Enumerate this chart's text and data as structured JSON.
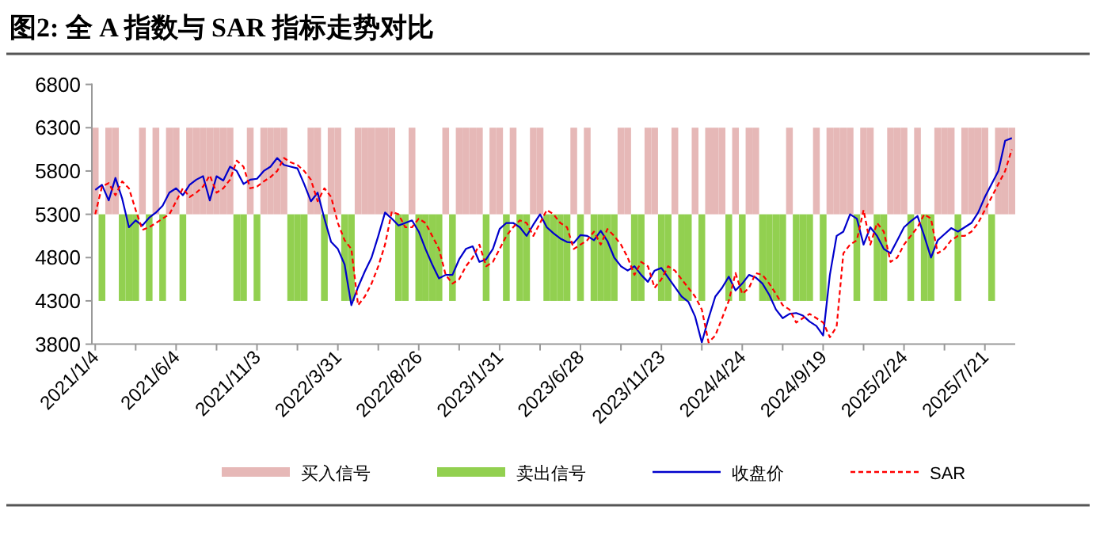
{
  "chart_data": {
    "type": "line",
    "title": "图2:  全 A 指数与 SAR 指标走势对比",
    "categories": [
      "2021/1/4",
      null,
      null,
      null,
      null,
      null,
      null,
      null,
      null,
      null,
      null,
      null,
      "2021/6/4",
      null,
      null,
      null,
      null,
      null,
      null,
      null,
      null,
      null,
      null,
      null,
      "2021/11/3",
      null,
      null,
      null,
      null,
      null,
      null,
      null,
      null,
      null,
      null,
      null,
      "2022/3/31",
      null,
      null,
      null,
      null,
      null,
      null,
      null,
      null,
      null,
      null,
      null,
      "2022/8/26",
      null,
      null,
      null,
      null,
      null,
      null,
      null,
      null,
      null,
      null,
      null,
      "2023/1/31",
      null,
      null,
      null,
      null,
      null,
      null,
      null,
      null,
      null,
      null,
      null,
      "2023/6/28",
      null,
      null,
      null,
      null,
      null,
      null,
      null,
      null,
      null,
      null,
      null,
      "2023/11/23",
      null,
      null,
      null,
      null,
      null,
      null,
      null,
      null,
      null,
      null,
      null,
      "2024/4/24",
      null,
      null,
      null,
      null,
      null,
      null,
      null,
      null,
      null,
      null,
      null,
      "2024/9/19",
      null,
      null,
      null,
      null,
      null,
      null,
      null,
      null,
      null,
      null,
      null,
      "2025/2/24",
      null,
      null,
      null,
      null,
      null,
      null,
      null,
      null,
      null,
      null,
      null,
      "2025/7/21",
      null,
      null,
      null,
      null
    ],
    "ylim": [
      3800,
      6800
    ],
    "yticks": [
      3800,
      4300,
      4800,
      5300,
      5800,
      6300,
      6800
    ],
    "legend": "bottom",
    "series": [
      {
        "name": "买入信号",
        "type": "bar",
        "color": "#e6b8b7",
        "values": [
          1000,
          null,
          1000,
          1000,
          null,
          null,
          null,
          1000,
          null,
          1000,
          null,
          1000,
          1000,
          null,
          1000,
          1000,
          1000,
          1000,
          1000,
          1000,
          1000,
          null,
          null,
          1000,
          null,
          1000,
          1000,
          1000,
          1000,
          null,
          null,
          null,
          1000,
          1000,
          null,
          1000,
          1000,
          null,
          null,
          1000,
          1000,
          1000,
          1000,
          1000,
          1000,
          null,
          null,
          1000,
          null,
          null,
          null,
          null,
          1000,
          null,
          1000,
          1000,
          1000,
          1000,
          null,
          1000,
          1000,
          null,
          1000,
          null,
          null,
          1000,
          1000,
          null,
          null,
          null,
          null,
          1000,
          null,
          1000,
          null,
          null,
          null,
          null,
          1000,
          1000,
          null,
          null,
          1000,
          1000,
          null,
          null,
          1000,
          null,
          null,
          1000,
          null,
          1000,
          1000,
          1000,
          null,
          1000,
          null,
          1000,
          1000,
          null,
          null,
          null,
          null,
          1000,
          null,
          null,
          null,
          1000,
          null,
          1000,
          1000,
          1000,
          1000,
          null,
          1000,
          1000,
          null,
          null,
          1000,
          1000,
          1000,
          null,
          1000,
          null,
          null,
          1000,
          1000,
          1000,
          null,
          1000,
          1000,
          1000,
          1000,
          null,
          1000,
          1000,
          1000
        ],
        "base": [
          5300,
          null,
          5300,
          5300,
          null,
          null,
          null,
          5300,
          null,
          5300,
          null,
          5300,
          5300,
          null,
          5300,
          5300,
          5300,
          5300,
          5300,
          5300,
          5300,
          null,
          null,
          5300,
          null,
          5300,
          5300,
          5300,
          5300,
          null,
          null,
          null,
          5300,
          5300,
          null,
          5300,
          5300,
          null,
          null,
          5300,
          5300,
          5300,
          5300,
          5300,
          5300,
          null,
          null,
          5300,
          null,
          null,
          null,
          null,
          5300,
          null,
          5300,
          5300,
          5300,
          5300,
          null,
          5300,
          5300,
          null,
          5300,
          null,
          null,
          5300,
          5300,
          null,
          null,
          null,
          null,
          5300,
          null,
          5300,
          null,
          null,
          null,
          null,
          5300,
          5300,
          null,
          null,
          5300,
          5300,
          null,
          null,
          5300,
          null,
          null,
          5300,
          null,
          5300,
          5300,
          5300,
          null,
          5300,
          null,
          5300,
          5300,
          null,
          null,
          null,
          null,
          5300,
          null,
          null,
          null,
          5300,
          null,
          5300,
          5300,
          5300,
          5300,
          null,
          5300,
          5300,
          null,
          null,
          5300,
          5300,
          5300,
          null,
          5300,
          null,
          null,
          5300,
          5300,
          5300,
          null,
          5300,
          5300,
          5300,
          5300,
          null,
          5300,
          5300,
          5300
        ]
      },
      {
        "name": "卖出信号",
        "type": "bar",
        "color": "#92d050",
        "values": [
          null,
          1000,
          null,
          null,
          1000,
          1000,
          1000,
          null,
          1000,
          null,
          1000,
          null,
          null,
          1000,
          null,
          null,
          null,
          null,
          null,
          null,
          null,
          1000,
          1000,
          null,
          1000,
          null,
          null,
          null,
          null,
          1000,
          1000,
          1000,
          null,
          null,
          1000,
          null,
          null,
          1000,
          1000,
          null,
          null,
          null,
          null,
          null,
          null,
          1000,
          1000,
          null,
          1000,
          1000,
          1000,
          1000,
          null,
          1000,
          null,
          null,
          null,
          null,
          1000,
          null,
          null,
          1000,
          null,
          1000,
          1000,
          null,
          null,
          1000,
          1000,
          1000,
          1000,
          null,
          1000,
          null,
          1000,
          1000,
          1000,
          1000,
          null,
          null,
          1000,
          1000,
          null,
          null,
          1000,
          1000,
          null,
          1000,
          1000,
          null,
          1000,
          null,
          null,
          null,
          1000,
          null,
          1000,
          null,
          null,
          1000,
          1000,
          1000,
          1000,
          null,
          1000,
          1000,
          1000,
          null,
          1000,
          null,
          null,
          null,
          null,
          1000,
          null,
          null,
          1000,
          1000,
          null,
          null,
          null,
          1000,
          null,
          1000,
          1000,
          null,
          null,
          null,
          1000,
          null,
          null,
          null,
          null,
          1000,
          null,
          null,
          null
        ],
        "base": [
          null,
          4300,
          null,
          null,
          4300,
          4300,
          4300,
          null,
          4300,
          null,
          4300,
          null,
          null,
          4300,
          null,
          null,
          null,
          null,
          null,
          null,
          null,
          4300,
          4300,
          null,
          4300,
          null,
          null,
          null,
          null,
          4300,
          4300,
          4300,
          null,
          null,
          4300,
          null,
          null,
          4300,
          4300,
          null,
          null,
          null,
          null,
          null,
          null,
          4300,
          4300,
          null,
          4300,
          4300,
          4300,
          4300,
          null,
          4300,
          null,
          null,
          null,
          null,
          4300,
          null,
          null,
          4300,
          null,
          4300,
          4300,
          null,
          null,
          4300,
          4300,
          4300,
          4300,
          null,
          4300,
          null,
          4300,
          4300,
          4300,
          4300,
          null,
          null,
          4300,
          4300,
          null,
          null,
          4300,
          4300,
          null,
          4300,
          4300,
          null,
          4300,
          null,
          null,
          null,
          4300,
          null,
          4300,
          null,
          null,
          4300,
          4300,
          4300,
          4300,
          null,
          4300,
          4300,
          4300,
          null,
          4300,
          null,
          null,
          null,
          null,
          4300,
          null,
          null,
          4300,
          4300,
          null,
          null,
          null,
          4300,
          null,
          4300,
          4300,
          null,
          null,
          null,
          4300,
          null,
          null,
          null,
          null,
          4300,
          null,
          null,
          null
        ]
      },
      {
        "name": "收盘价",
        "color": "#0000cc",
        "values": [
          5580,
          5640,
          5460,
          5720,
          5480,
          5150,
          5230,
          5170,
          5260,
          5320,
          5400,
          5550,
          5600,
          5520,
          5640,
          5700,
          5740,
          5460,
          5740,
          5690,
          5850,
          5800,
          5650,
          5700,
          5710,
          5800,
          5850,
          5950,
          5870,
          5850,
          5830,
          5650,
          5450,
          5550,
          5250,
          4980,
          4900,
          4720,
          4250,
          4460,
          4640,
          4800,
          5050,
          5320,
          5250,
          5170,
          5200,
          5230,
          5100,
          4900,
          4720,
          4560,
          4600,
          4600,
          4780,
          4900,
          4930,
          4750,
          4780,
          4900,
          5130,
          5200,
          5200,
          5150,
          5050,
          5180,
          5300,
          5150,
          5080,
          5020,
          4980,
          4970,
          5060,
          5050,
          5000,
          5110,
          4990,
          4800,
          4700,
          4650,
          4700,
          4600,
          4520,
          4650,
          4680,
          4570,
          4460,
          4350,
          4290,
          4120,
          3820,
          4100,
          4350,
          4450,
          4580,
          4420,
          4500,
          4600,
          4570,
          4500,
          4370,
          4200,
          4100,
          4150,
          4160,
          4130,
          4060,
          4010,
          3900,
          4600,
          5050,
          5100,
          5300,
          5250,
          4950,
          5150,
          5050,
          4900,
          4850,
          5000,
          5150,
          5220,
          5280,
          5050,
          4800,
          5000,
          5070,
          5140,
          5100,
          5150,
          5200,
          5320,
          5500,
          5650,
          5800,
          6150,
          6180
        ]
      },
      {
        "name": "SAR",
        "color": "#ff0000",
        "line_style": "dashed",
        "values": [
          5300,
          5620,
          5660,
          5520,
          5680,
          5600,
          5350,
          5120,
          5150,
          5200,
          5250,
          5300,
          5450,
          5600,
          5500,
          5550,
          5620,
          5750,
          5550,
          5600,
          5700,
          5920,
          5850,
          5600,
          5620,
          5680,
          5730,
          5800,
          5950,
          5900,
          5870,
          5800,
          5700,
          5450,
          5600,
          5500,
          5200,
          5000,
          4900,
          4250,
          4350,
          4500,
          4700,
          4950,
          5330,
          5300,
          5150,
          5150,
          5250,
          5200,
          5050,
          4900,
          4600,
          4500,
          4550,
          4700,
          4800,
          4950,
          4700,
          4750,
          4900,
          5050,
          5150,
          5230,
          5200,
          5050,
          5200,
          5350,
          5300,
          5200,
          5150,
          4900,
          4950,
          5000,
          5100,
          4950,
          5130,
          5050,
          4950,
          4800,
          4600,
          4750,
          4700,
          4450,
          4550,
          4700,
          4650,
          4550,
          4450,
          4350,
          4200,
          3820,
          3900,
          4100,
          4300,
          4620,
          4380,
          4450,
          4620,
          4600,
          4500,
          4380,
          4250,
          4200,
          4050,
          4100,
          4150,
          4100,
          4050,
          3880,
          4000,
          4850,
          4950,
          5000,
          5350,
          4950,
          5200,
          5100,
          4750,
          4800,
          4950,
          5050,
          5150,
          5300,
          5250,
          4850,
          4900,
          5000,
          5050,
          5050,
          5100,
          5200,
          5350,
          5500,
          5650,
          5800,
          6050
        ]
      }
    ]
  }
}
